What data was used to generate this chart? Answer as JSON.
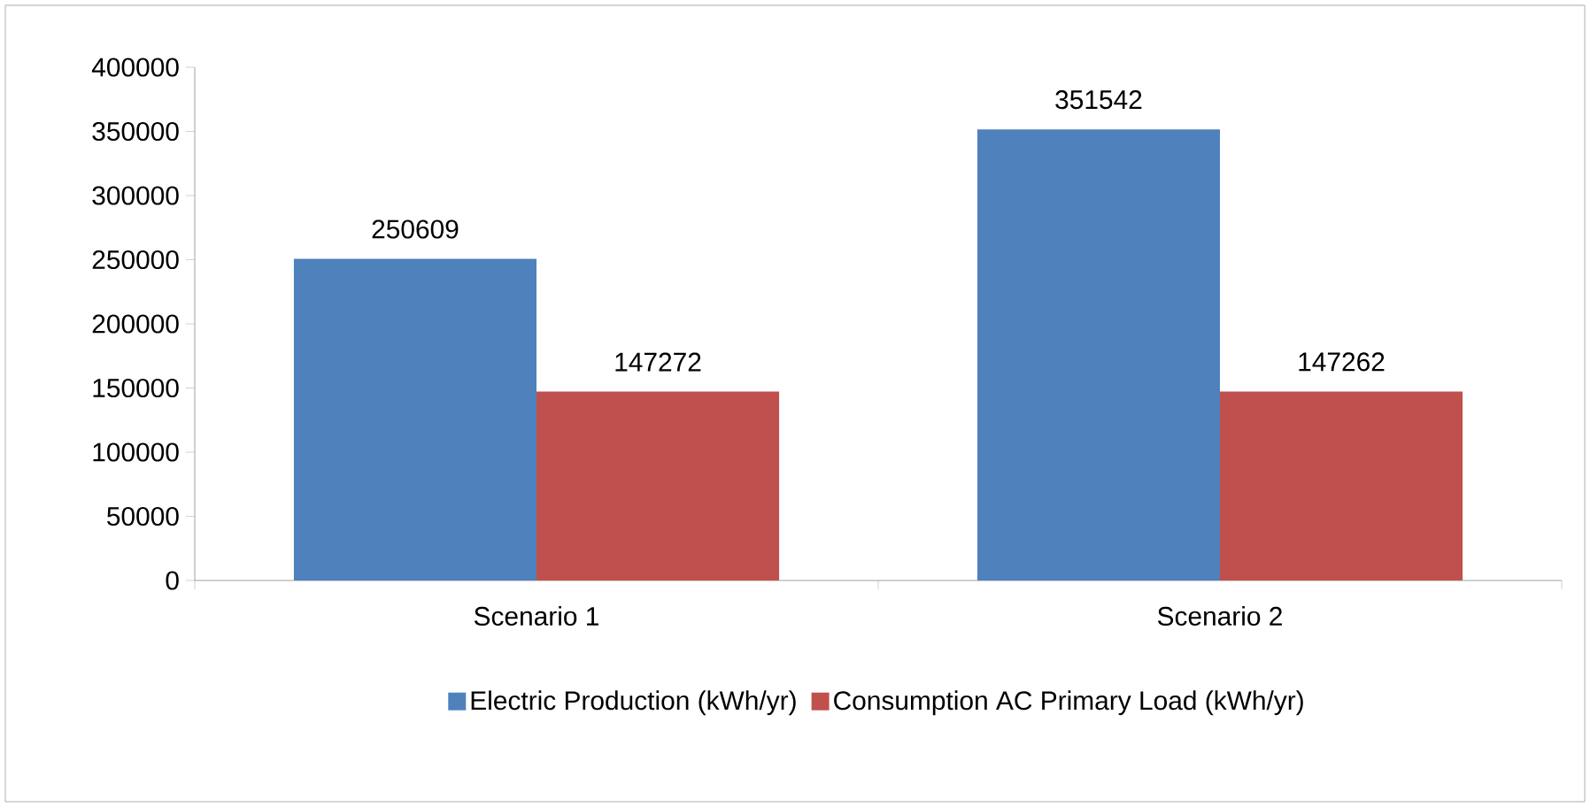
{
  "chart_data": {
    "type": "bar",
    "categories": [
      "Scenario 1",
      "Scenario 2"
    ],
    "series": [
      {
        "name": "Electric Production (kWh/yr)",
        "color": "#4f81bd",
        "values": [
          250609,
          351542
        ]
      },
      {
        "name": "Consumption AC Primary Load (kWh/yr)",
        "color": "#c0504d",
        "values": [
          147272,
          147262
        ]
      }
    ],
    "ylim": [
      0,
      400000
    ],
    "yticks": [
      0,
      50000,
      100000,
      150000,
      200000,
      250000,
      300000,
      350000,
      400000
    ],
    "data_labels": true,
    "legend": "bottom",
    "grid": false
  }
}
